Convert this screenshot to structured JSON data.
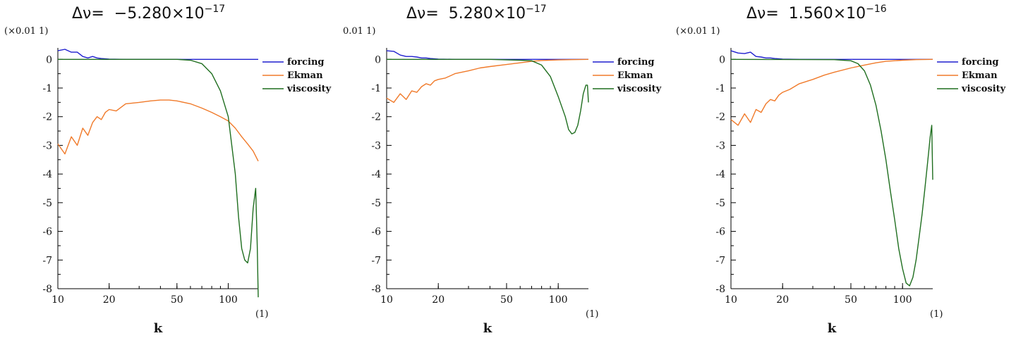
{
  "colors": {
    "forcing": "#1f1fcf",
    "ekman": "#f07a2a",
    "viscosity": "#1f6e1f"
  },
  "chart_data": [
    {
      "type": "line",
      "title_prefix": "Δν= ",
      "title_mantissa": "−5.280×10",
      "title_exponent": "−17",
      "y_multiplier": "(×0.01 1)",
      "x_unit": "(1)",
      "xlabel": "k",
      "xscale": "log",
      "xlim": [
        10,
        150
      ],
      "ylim": [
        -8,
        0.4
      ],
      "xticks": [
        10,
        20,
        50,
        100
      ],
      "yticks": [
        0,
        -1,
        -2,
        -3,
        -4,
        -5,
        -6,
        -7,
        -8
      ],
      "series": [
        {
          "name": "forcing",
          "x": [
            10,
            11,
            12,
            13,
            14,
            15,
            16,
            17,
            18,
            20,
            25,
            150
          ],
          "y": [
            0.3,
            0.35,
            0.25,
            0.25,
            0.1,
            0.05,
            0.1,
            0.05,
            0.03,
            0.01,
            0,
            0
          ]
        },
        {
          "name": "Ekman",
          "x": [
            10,
            11,
            12,
            13,
            14,
            15,
            16,
            17,
            18,
            19,
            20,
            22,
            25,
            30,
            35,
            40,
            45,
            50,
            60,
            70,
            80,
            90,
            100,
            110,
            120,
            130,
            140,
            150
          ],
          "y": [
            -2.95,
            -3.3,
            -2.7,
            -3.0,
            -2.4,
            -2.65,
            -2.2,
            -2.0,
            -2.1,
            -1.85,
            -1.75,
            -1.8,
            -1.55,
            -1.5,
            -1.45,
            -1.42,
            -1.42,
            -1.45,
            -1.55,
            -1.7,
            -1.85,
            -2.0,
            -2.15,
            -2.4,
            -2.7,
            -2.95,
            -3.2,
            -3.55
          ]
        },
        {
          "name": "viscosity",
          "x": [
            10,
            30,
            50,
            60,
            70,
            80,
            90,
            100,
            110,
            115,
            120,
            125,
            130,
            135,
            140,
            145,
            148,
            150
          ],
          "y": [
            0,
            0,
            0,
            -0.03,
            -0.15,
            -0.5,
            -1.1,
            -2.0,
            -4.0,
            -5.5,
            -6.6,
            -7.0,
            -7.1,
            -6.6,
            -5.2,
            -4.5,
            -6.5,
            -8.3
          ]
        }
      ],
      "legend": [
        "forcing",
        "Ekman",
        "viscosity"
      ]
    },
    {
      "type": "line",
      "title_prefix": "Δν= ",
      "title_mantissa": "5.280×10",
      "title_exponent": "−17",
      "y_multiplier": "0.01 1)",
      "x_unit": "(1)",
      "xlabel": "k",
      "xscale": "log",
      "xlim": [
        10,
        150
      ],
      "ylim": [
        -8,
        0.4
      ],
      "xticks": [
        10,
        20,
        50,
        100
      ],
      "yticks": [
        0,
        -1,
        -2,
        -3,
        -4,
        -5,
        -6,
        -7,
        -8
      ],
      "series": [
        {
          "name": "forcing",
          "x": [
            10,
            11,
            12,
            13,
            14,
            15,
            16,
            17,
            18,
            20,
            25,
            150
          ],
          "y": [
            0.3,
            0.28,
            0.15,
            0.1,
            0.1,
            0.08,
            0.05,
            0.05,
            0.03,
            0.01,
            0,
            0
          ]
        },
        {
          "name": "Ekman",
          "x": [
            10,
            11,
            12,
            13,
            14,
            15,
            16,
            17,
            18,
            19,
            20,
            22,
            25,
            30,
            35,
            40,
            50,
            60,
            70,
            80,
            100,
            120,
            150
          ],
          "y": [
            -1.35,
            -1.5,
            -1.2,
            -1.4,
            -1.1,
            -1.15,
            -0.95,
            -0.85,
            -0.9,
            -0.75,
            -0.7,
            -0.65,
            -0.5,
            -0.4,
            -0.3,
            -0.25,
            -0.18,
            -0.12,
            -0.07,
            -0.04,
            -0.02,
            -0.01,
            0
          ]
        },
        {
          "name": "viscosity",
          "x": [
            10,
            40,
            60,
            70,
            80,
            90,
            100,
            110,
            115,
            120,
            125,
            130,
            135,
            140,
            145,
            148,
            150
          ],
          "y": [
            0,
            0,
            -0.03,
            -0.05,
            -0.2,
            -0.6,
            -1.3,
            -2.0,
            -2.45,
            -2.6,
            -2.55,
            -2.3,
            -1.8,
            -1.2,
            -0.9,
            -0.9,
            -1.5
          ]
        }
      ],
      "legend": [
        "forcing",
        "Ekman",
        "viscosity"
      ]
    },
    {
      "type": "line",
      "title_prefix": "Δν= ",
      "title_mantissa": "1.560×10",
      "title_exponent": "−16",
      "y_multiplier": "(×0.01 1)",
      "x_unit": "(1)",
      "xlabel": "k",
      "xscale": "log",
      "xlim": [
        10,
        150
      ],
      "ylim": [
        -8,
        0.4
      ],
      "xticks": [
        10,
        20,
        50,
        100
      ],
      "yticks": [
        0,
        -1,
        -2,
        -3,
        -4,
        -5,
        -6,
        -7,
        -8
      ],
      "series": [
        {
          "name": "forcing",
          "x": [
            10,
            11,
            12,
            13,
            14,
            15,
            16,
            17,
            18,
            20,
            25,
            150
          ],
          "y": [
            0.3,
            0.22,
            0.2,
            0.25,
            0.1,
            0.08,
            0.05,
            0.05,
            0.03,
            0.01,
            0,
            0
          ]
        },
        {
          "name": "Ekman",
          "x": [
            10,
            11,
            12,
            13,
            14,
            15,
            16,
            17,
            18,
            19,
            20,
            22,
            25,
            30,
            35,
            40,
            50,
            60,
            70,
            80,
            100,
            120,
            150
          ],
          "y": [
            -2.1,
            -2.3,
            -1.9,
            -2.2,
            -1.75,
            -1.85,
            -1.55,
            -1.4,
            -1.45,
            -1.25,
            -1.15,
            -1.05,
            -0.85,
            -0.7,
            -0.55,
            -0.45,
            -0.3,
            -0.2,
            -0.12,
            -0.07,
            -0.03,
            -0.01,
            0
          ]
        },
        {
          "name": "viscosity",
          "x": [
            10,
            40,
            50,
            55,
            60,
            65,
            70,
            75,
            80,
            85,
            90,
            95,
            100,
            105,
            110,
            115,
            120,
            125,
            130,
            135,
            140,
            145,
            148,
            150
          ],
          "y": [
            0,
            -0.01,
            -0.05,
            -0.15,
            -0.4,
            -0.9,
            -1.6,
            -2.5,
            -3.5,
            -4.6,
            -5.6,
            -6.6,
            -7.3,
            -7.8,
            -7.9,
            -7.6,
            -7.0,
            -6.2,
            -5.4,
            -4.5,
            -3.6,
            -2.7,
            -2.3,
            -4.2
          ]
        }
      ],
      "legend": [
        "forcing",
        "Ekman",
        "viscosity"
      ]
    }
  ]
}
